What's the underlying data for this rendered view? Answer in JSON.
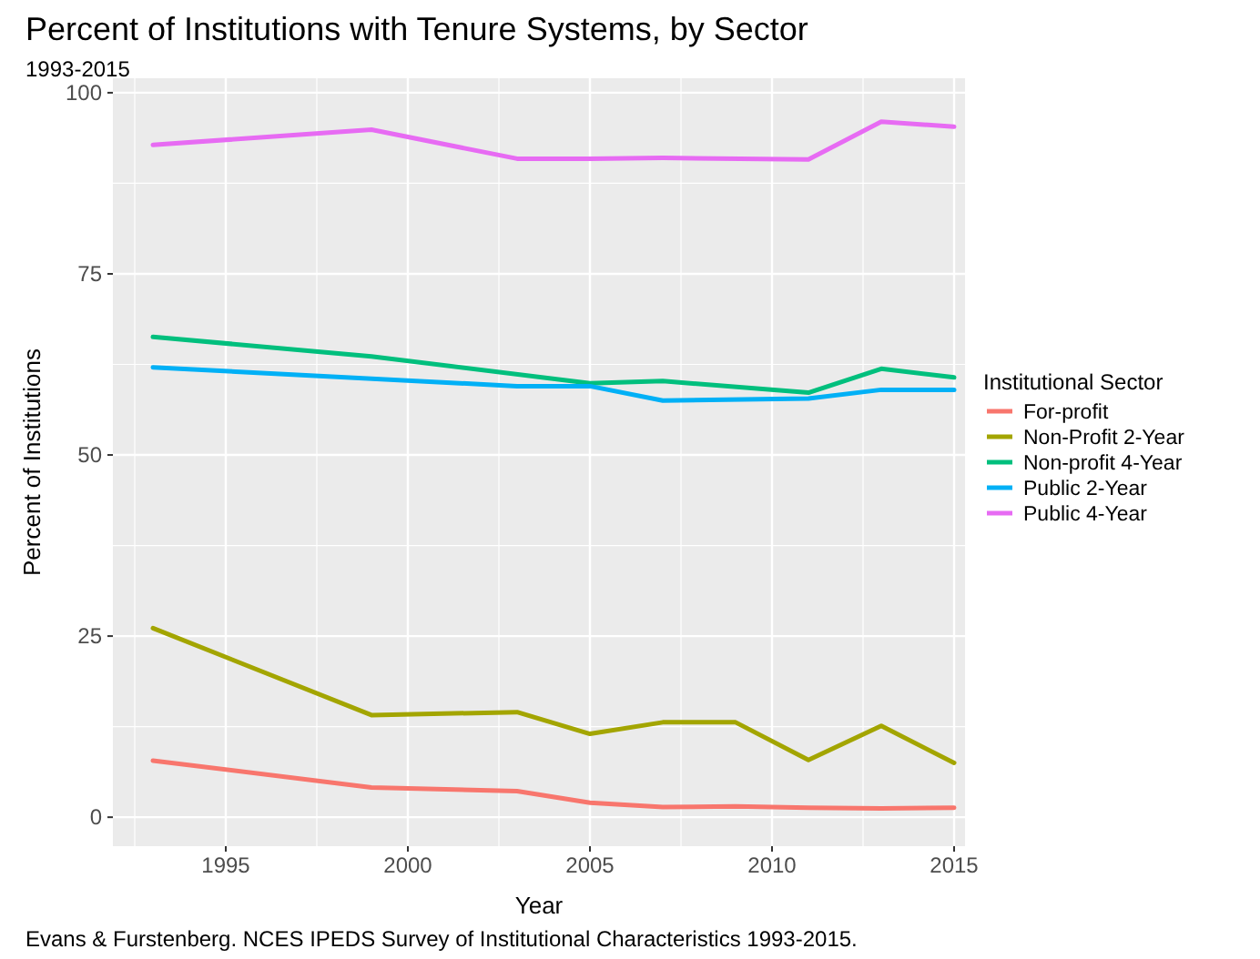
{
  "chart_data": {
    "type": "line",
    "title": "Percent of Institutions with Tenure Systems, by Sector",
    "subtitle": "1993-2015",
    "xlabel": "Year",
    "ylabel": "Percent of Institutions",
    "legend_title": "Institutional Sector",
    "annotations": [
      "Evans & Furstenberg. NCES IPEDS Survey of Institutional Characteristics 1993-2015."
    ],
    "xlim": [
      1991.9,
      2015.3
    ],
    "xticks": [
      1995,
      2000,
      2005,
      2010,
      2015
    ],
    "ylim": [
      -4,
      102
    ],
    "yticks": [
      0,
      25,
      50,
      75,
      100
    ],
    "grid": true,
    "legend": "right",
    "series": [
      {
        "name": "For-profit",
        "color": "#f8766d",
        "x": [
          1993,
          1999,
          2003,
          2005,
          2007,
          2009,
          2011,
          2013,
          2015
        ],
        "values": [
          7.8,
          4.1,
          3.6,
          2.0,
          1.4,
          1.5,
          1.3,
          1.2,
          1.3
        ]
      },
      {
        "name": "Non-Profit 2-Year",
        "color": "#a3a500",
        "x": [
          1993,
          1999,
          2003,
          2005,
          2007,
          2009,
          2011,
          2013,
          2015
        ],
        "values": [
          26.1,
          14.1,
          14.5,
          11.5,
          13.1,
          13.1,
          7.9,
          12.6,
          7.5
        ]
      },
      {
        "name": "Non-profit 4-Year",
        "color": "#00bf7d",
        "x": [
          1993,
          1999,
          2005,
          2007,
          2011,
          2013,
          2015
        ],
        "values": [
          66.3,
          63.6,
          59.9,
          60.2,
          58.6,
          61.9,
          60.7
        ]
      },
      {
        "name": "Public 2-Year",
        "color": "#00b0f6",
        "x": [
          1993,
          2003,
          2005,
          2007,
          2011,
          2013,
          2015
        ],
        "values": [
          62.1,
          59.5,
          59.5,
          57.5,
          57.8,
          59.0,
          59.0
        ]
      },
      {
        "name": "Public 4-Year",
        "color": "#e76bf3",
        "x": [
          1993,
          1999,
          2003,
          2005,
          2007,
          2011,
          2013,
          2015
        ],
        "values": [
          92.8,
          94.9,
          90.9,
          90.9,
          91.0,
          90.8,
          96.0,
          95.3
        ]
      }
    ]
  }
}
